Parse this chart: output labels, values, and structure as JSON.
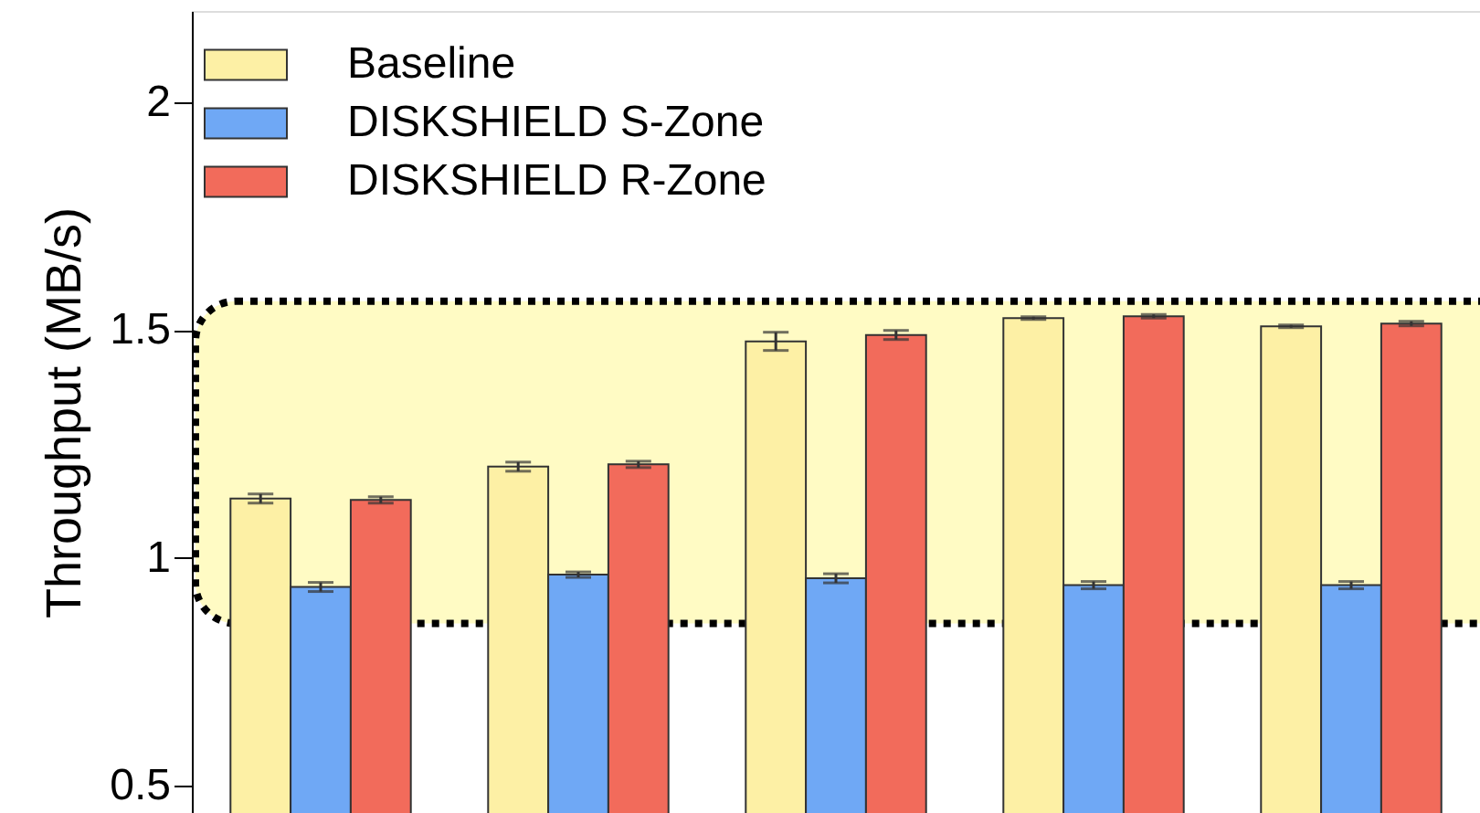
{
  "chart_data": {
    "type": "bar",
    "ylabel": "Throughput (MB/s)",
    "categories": [
      null,
      null,
      null,
      null,
      null
    ],
    "series": [
      {
        "name": "Baseline",
        "color": "#fdf0a5",
        "values": [
          1.13,
          1.2,
          1.475,
          1.526,
          1.508
        ],
        "errors": [
          0.01,
          0.01,
          0.02,
          0.003,
          0.003
        ]
      },
      {
        "name": "DISKSHIELD S-Zone",
        "color": "#6fa8f5",
        "values": [
          0.936,
          0.963,
          0.955,
          0.94,
          0.94
        ],
        "errors": [
          0.01,
          0.006,
          0.01,
          0.008,
          0.008
        ]
      },
      {
        "name": "DISKSHIELD R-Zone",
        "color": "#f26b5b",
        "values": [
          1.127,
          1.205,
          1.489,
          1.53,
          1.514
        ],
        "errors": [
          0.007,
          0.007,
          0.01,
          0.004,
          0.005
        ]
      }
    ],
    "ylim": [
      0.44,
      2.2
    ],
    "yticks": [
      0.5,
      1,
      1.5,
      2
    ],
    "bands": [
      {
        "axis": "y",
        "from": 0.856,
        "to": 1.563,
        "color": "#fffbc4"
      }
    ],
    "legend": "top left"
  }
}
